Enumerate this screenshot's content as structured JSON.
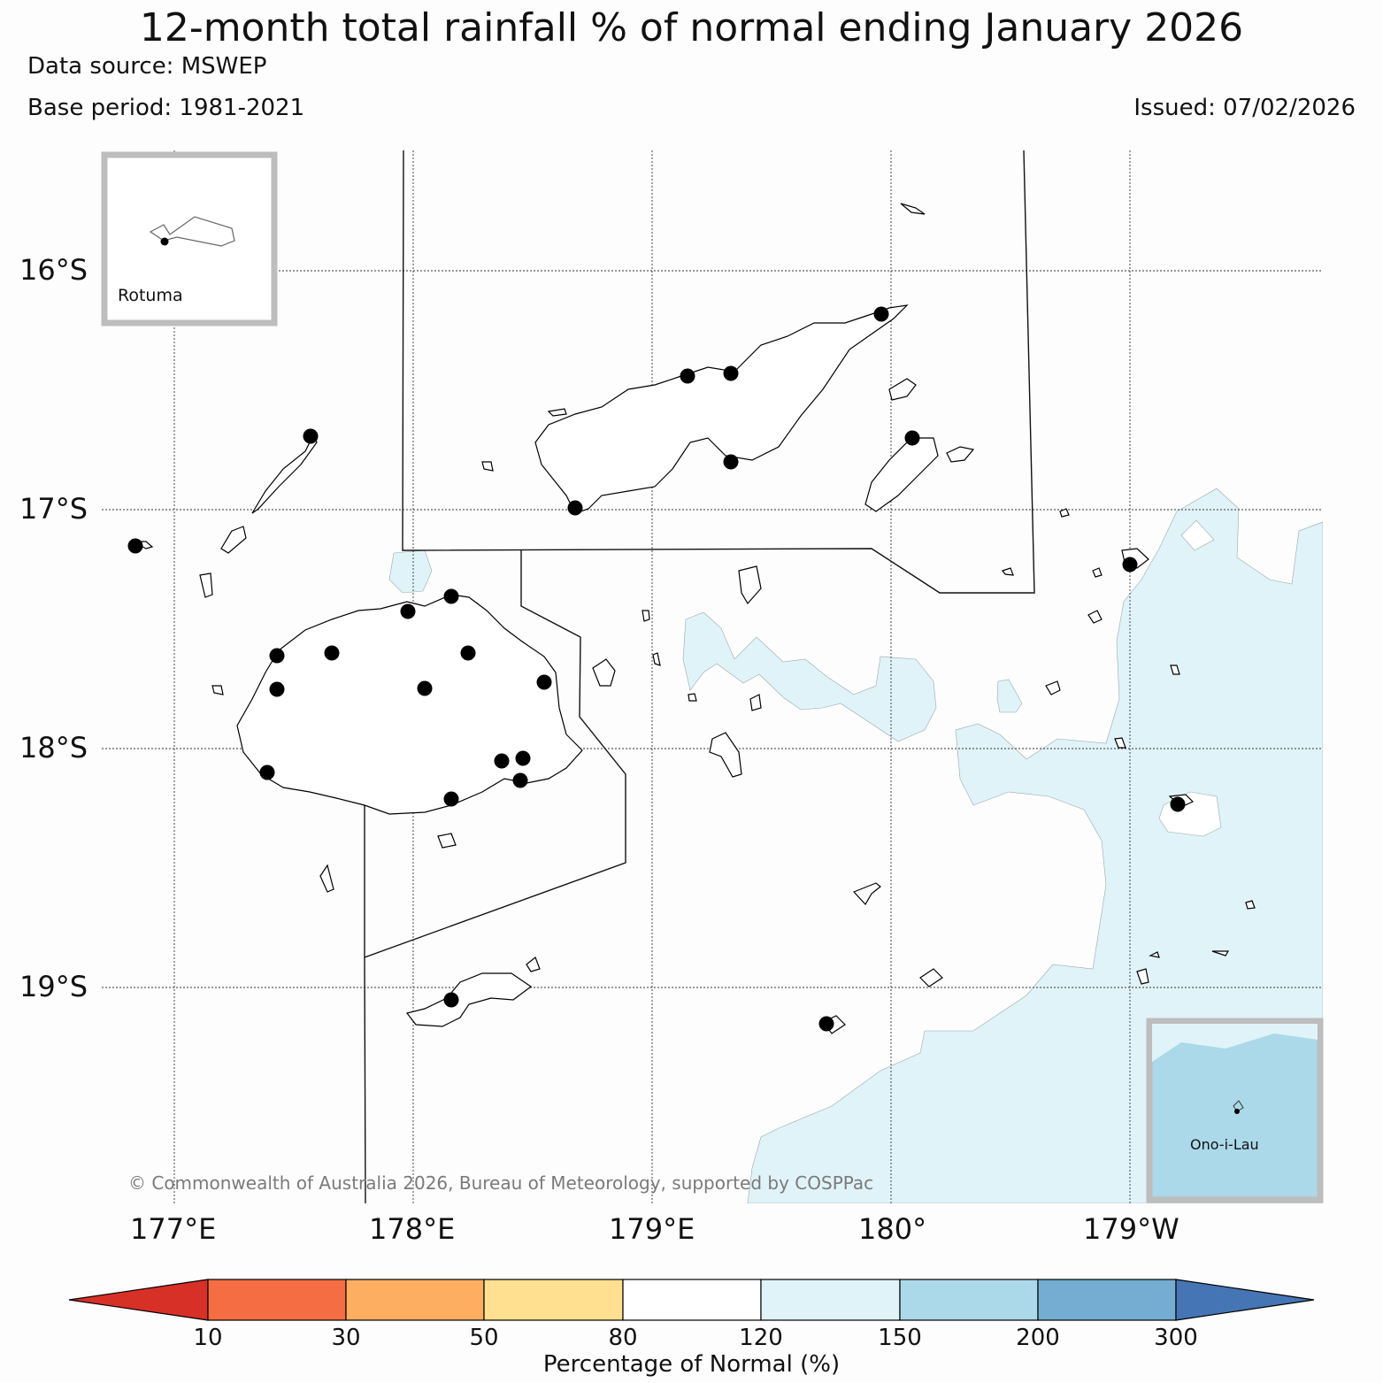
{
  "header": {
    "title": "12-month total rainfall % of normal ending January 2026",
    "data_source": "Data source: MSWEP",
    "base_period": "Base period: 1981-2021",
    "issued": "Issued: 07/02/2026"
  },
  "axes": {
    "latitudes": [
      "16°S",
      "17°S",
      "18°S",
      "19°S"
    ],
    "longitudes": [
      "177°E",
      "178°E",
      "179°E",
      "180°",
      "179°W"
    ]
  },
  "insets": {
    "rotuma": "Rotuma",
    "ono_i_lau": "Ono-i-Lau"
  },
  "copyright": "© Commonwealth of Australia 2026, Bureau of Meteorology, supported by COSPPac",
  "colorbar": {
    "title": "Percentage of Normal (%)",
    "ticks": [
      "10",
      "30",
      "50",
      "80",
      "120",
      "150",
      "200",
      "300"
    ],
    "colors": [
      "#d73027",
      "#f46d43",
      "#fdae61",
      "#fee090",
      "#ffffff",
      "#e0f3f8",
      "#abd9e9",
      "#74add1",
      "#4575b4"
    ]
  },
  "colors": {
    "light_blue_area": "#e0f3f8",
    "inset_blue": "#abd9e9",
    "inset_border": "#bdbdbd",
    "station": "#000000"
  }
}
